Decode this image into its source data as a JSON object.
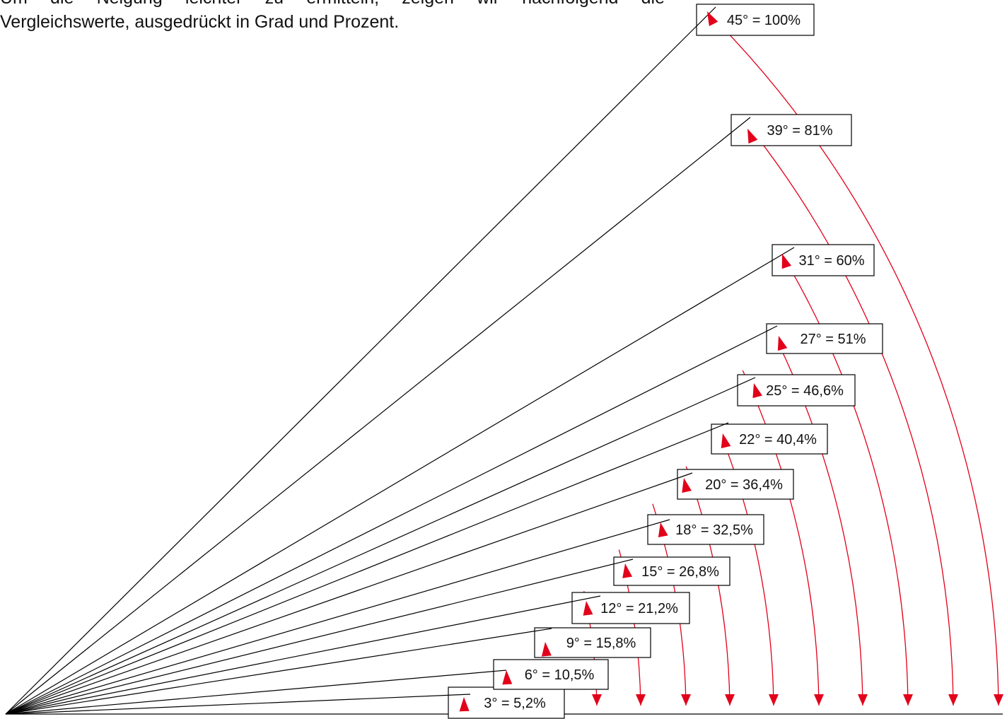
{
  "intro": {
    "line1": "Um die Neigung leichter zu ermitteln, zeigen wir nachfolgend die",
    "line2": "Vergleichswerte, ausgedrückt in Grad und Prozent."
  },
  "colors": {
    "line": "#000000",
    "arc": "#e2001a"
  },
  "slopes": [
    {
      "deg": 3,
      "label": "3° = 5,2%"
    },
    {
      "deg": 6,
      "label": "6° = 10,5%"
    },
    {
      "deg": 9,
      "label": "9° = 15,8%"
    },
    {
      "deg": 12,
      "label": "12° = 21,2%"
    },
    {
      "deg": 15,
      "label": "15° = 26,8%"
    },
    {
      "deg": 18,
      "label": "18° = 32,5%"
    },
    {
      "deg": 20,
      "label": "20° = 36,4%"
    },
    {
      "deg": 22,
      "label": "22° = 40,4%"
    },
    {
      "deg": 25,
      "label": "25° = 46,6%"
    },
    {
      "deg": 27,
      "label": "27° = 51%"
    },
    {
      "deg": 31,
      "label": "31° = 60%"
    },
    {
      "deg": 39,
      "label": "39° = 81%"
    },
    {
      "deg": 45,
      "label": "45° = 100%"
    }
  ]
}
